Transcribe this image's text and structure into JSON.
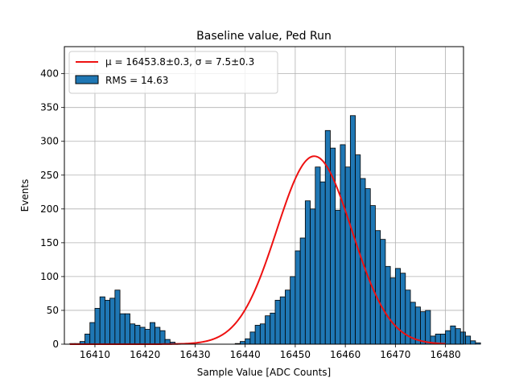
{
  "chart_data": {
    "type": "bar",
    "title": "Baseline value, Ped Run",
    "xlabel": "Sample Value [ADC Counts]",
    "ylabel": "Events",
    "xlim": [
      16403.9,
      16483.6
    ],
    "ylim": [
      0,
      440
    ],
    "xticks": [
      16410,
      16420,
      16430,
      16440,
      16450,
      16460,
      16470,
      16480
    ],
    "yticks": [
      0,
      50,
      100,
      150,
      200,
      250,
      300,
      350,
      400
    ],
    "grid": true,
    "legend": {
      "placement": "top-left",
      "entries": [
        {
          "label": "μ = 16453.8±0.3, σ = 7.5±0.3",
          "type": "line",
          "color": "#ee1111"
        },
        {
          "label": "RMS = 14.63",
          "type": "bar",
          "color": "#1f77b4"
        }
      ]
    },
    "histogram": {
      "bin_start": 16405,
      "bin_width": 1,
      "color": "#1f77b4",
      "edge_color": "#000000",
      "counts": [
        1,
        1,
        4,
        15,
        32,
        53,
        70,
        65,
        68,
        80,
        45,
        45,
        30,
        28,
        25,
        22,
        32,
        25,
        20,
        7,
        3,
        1,
        1,
        0,
        0,
        0,
        0,
        0,
        0,
        0,
        0,
        0,
        0,
        1,
        4,
        8,
        18,
        28,
        30,
        42,
        46,
        65,
        70,
        80,
        100,
        138,
        157,
        212,
        200,
        262,
        240,
        316,
        290,
        198,
        295,
        262,
        338,
        280,
        245,
        230,
        205,
        168,
        155,
        115,
        98,
        112,
        105,
        80,
        62,
        55,
        48,
        50,
        12,
        15,
        15,
        20,
        27,
        23,
        18,
        12,
        5,
        2
      ],
      "rms_label": "RMS = 14.63"
    },
    "fit": {
      "type": "gaussian",
      "mu": 16453.8,
      "sigma": 7.5,
      "amplitude": 278,
      "x_range": [
        16405,
        16480
      ],
      "color": "#ee1111",
      "label": "μ = 16453.8±0.3, σ = 7.5±0.3"
    }
  }
}
